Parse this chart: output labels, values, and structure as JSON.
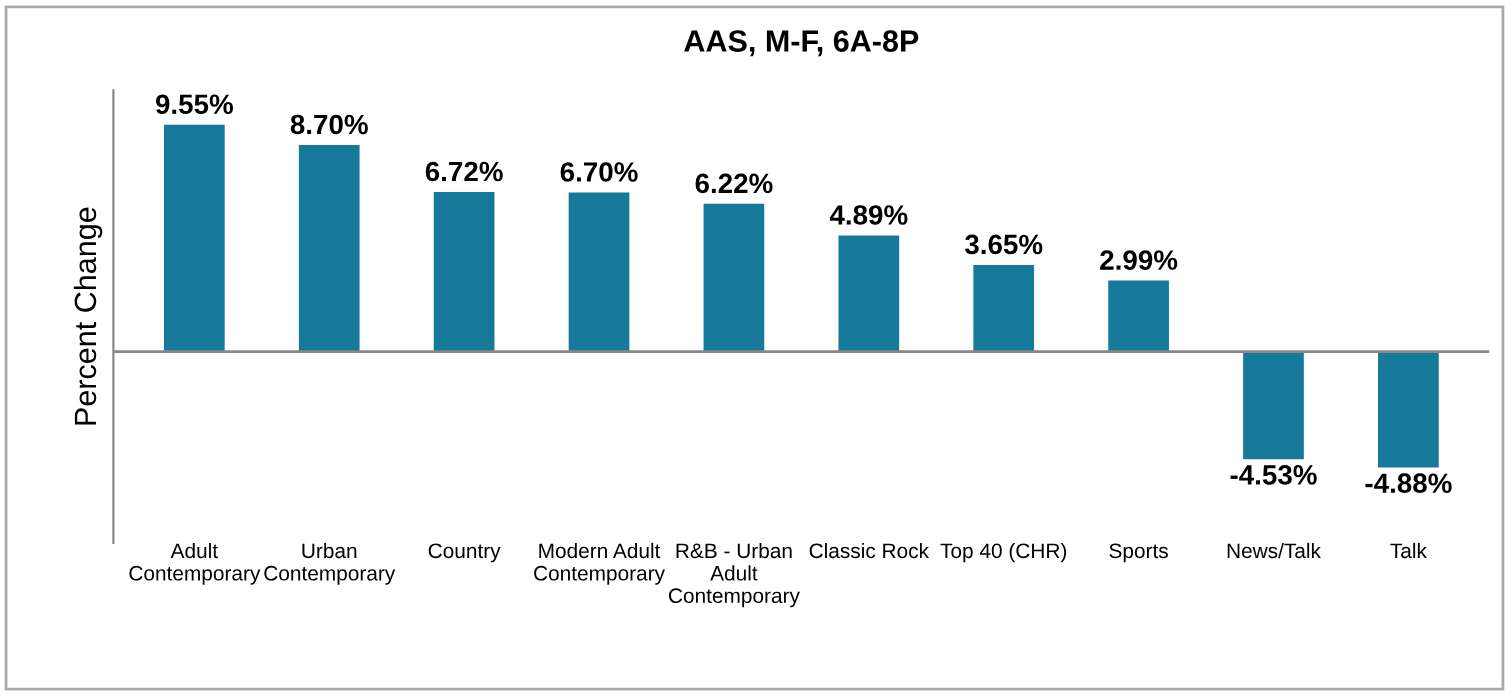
{
  "chart_data": {
    "type": "bar",
    "title": "AAS, M-F, 6A-8P",
    "ylabel": "Percent Change",
    "categories": [
      "Adult\nContemporary",
      "Urban\nContemporary",
      "Country",
      "Modern Adult\nContemporary",
      "R&B - Urban\nAdult\nContemporary",
      "Classic Rock",
      "Top 40 (CHR)",
      "Sports",
      "News/Talk",
      "Talk"
    ],
    "values": [
      9.55,
      8.7,
      6.72,
      6.7,
      6.22,
      4.89,
      3.65,
      2.99,
      -4.53,
      -4.88
    ],
    "value_labels": [
      "9.55%",
      "8.70%",
      "6.72%",
      "6.70%",
      "6.22%",
      "4.89%",
      "3.65%",
      "2.99%",
      "-4.53%",
      "-4.88%"
    ],
    "color": "#17799a",
    "tick_labels": "x",
    "grid": false,
    "legend": false
  }
}
